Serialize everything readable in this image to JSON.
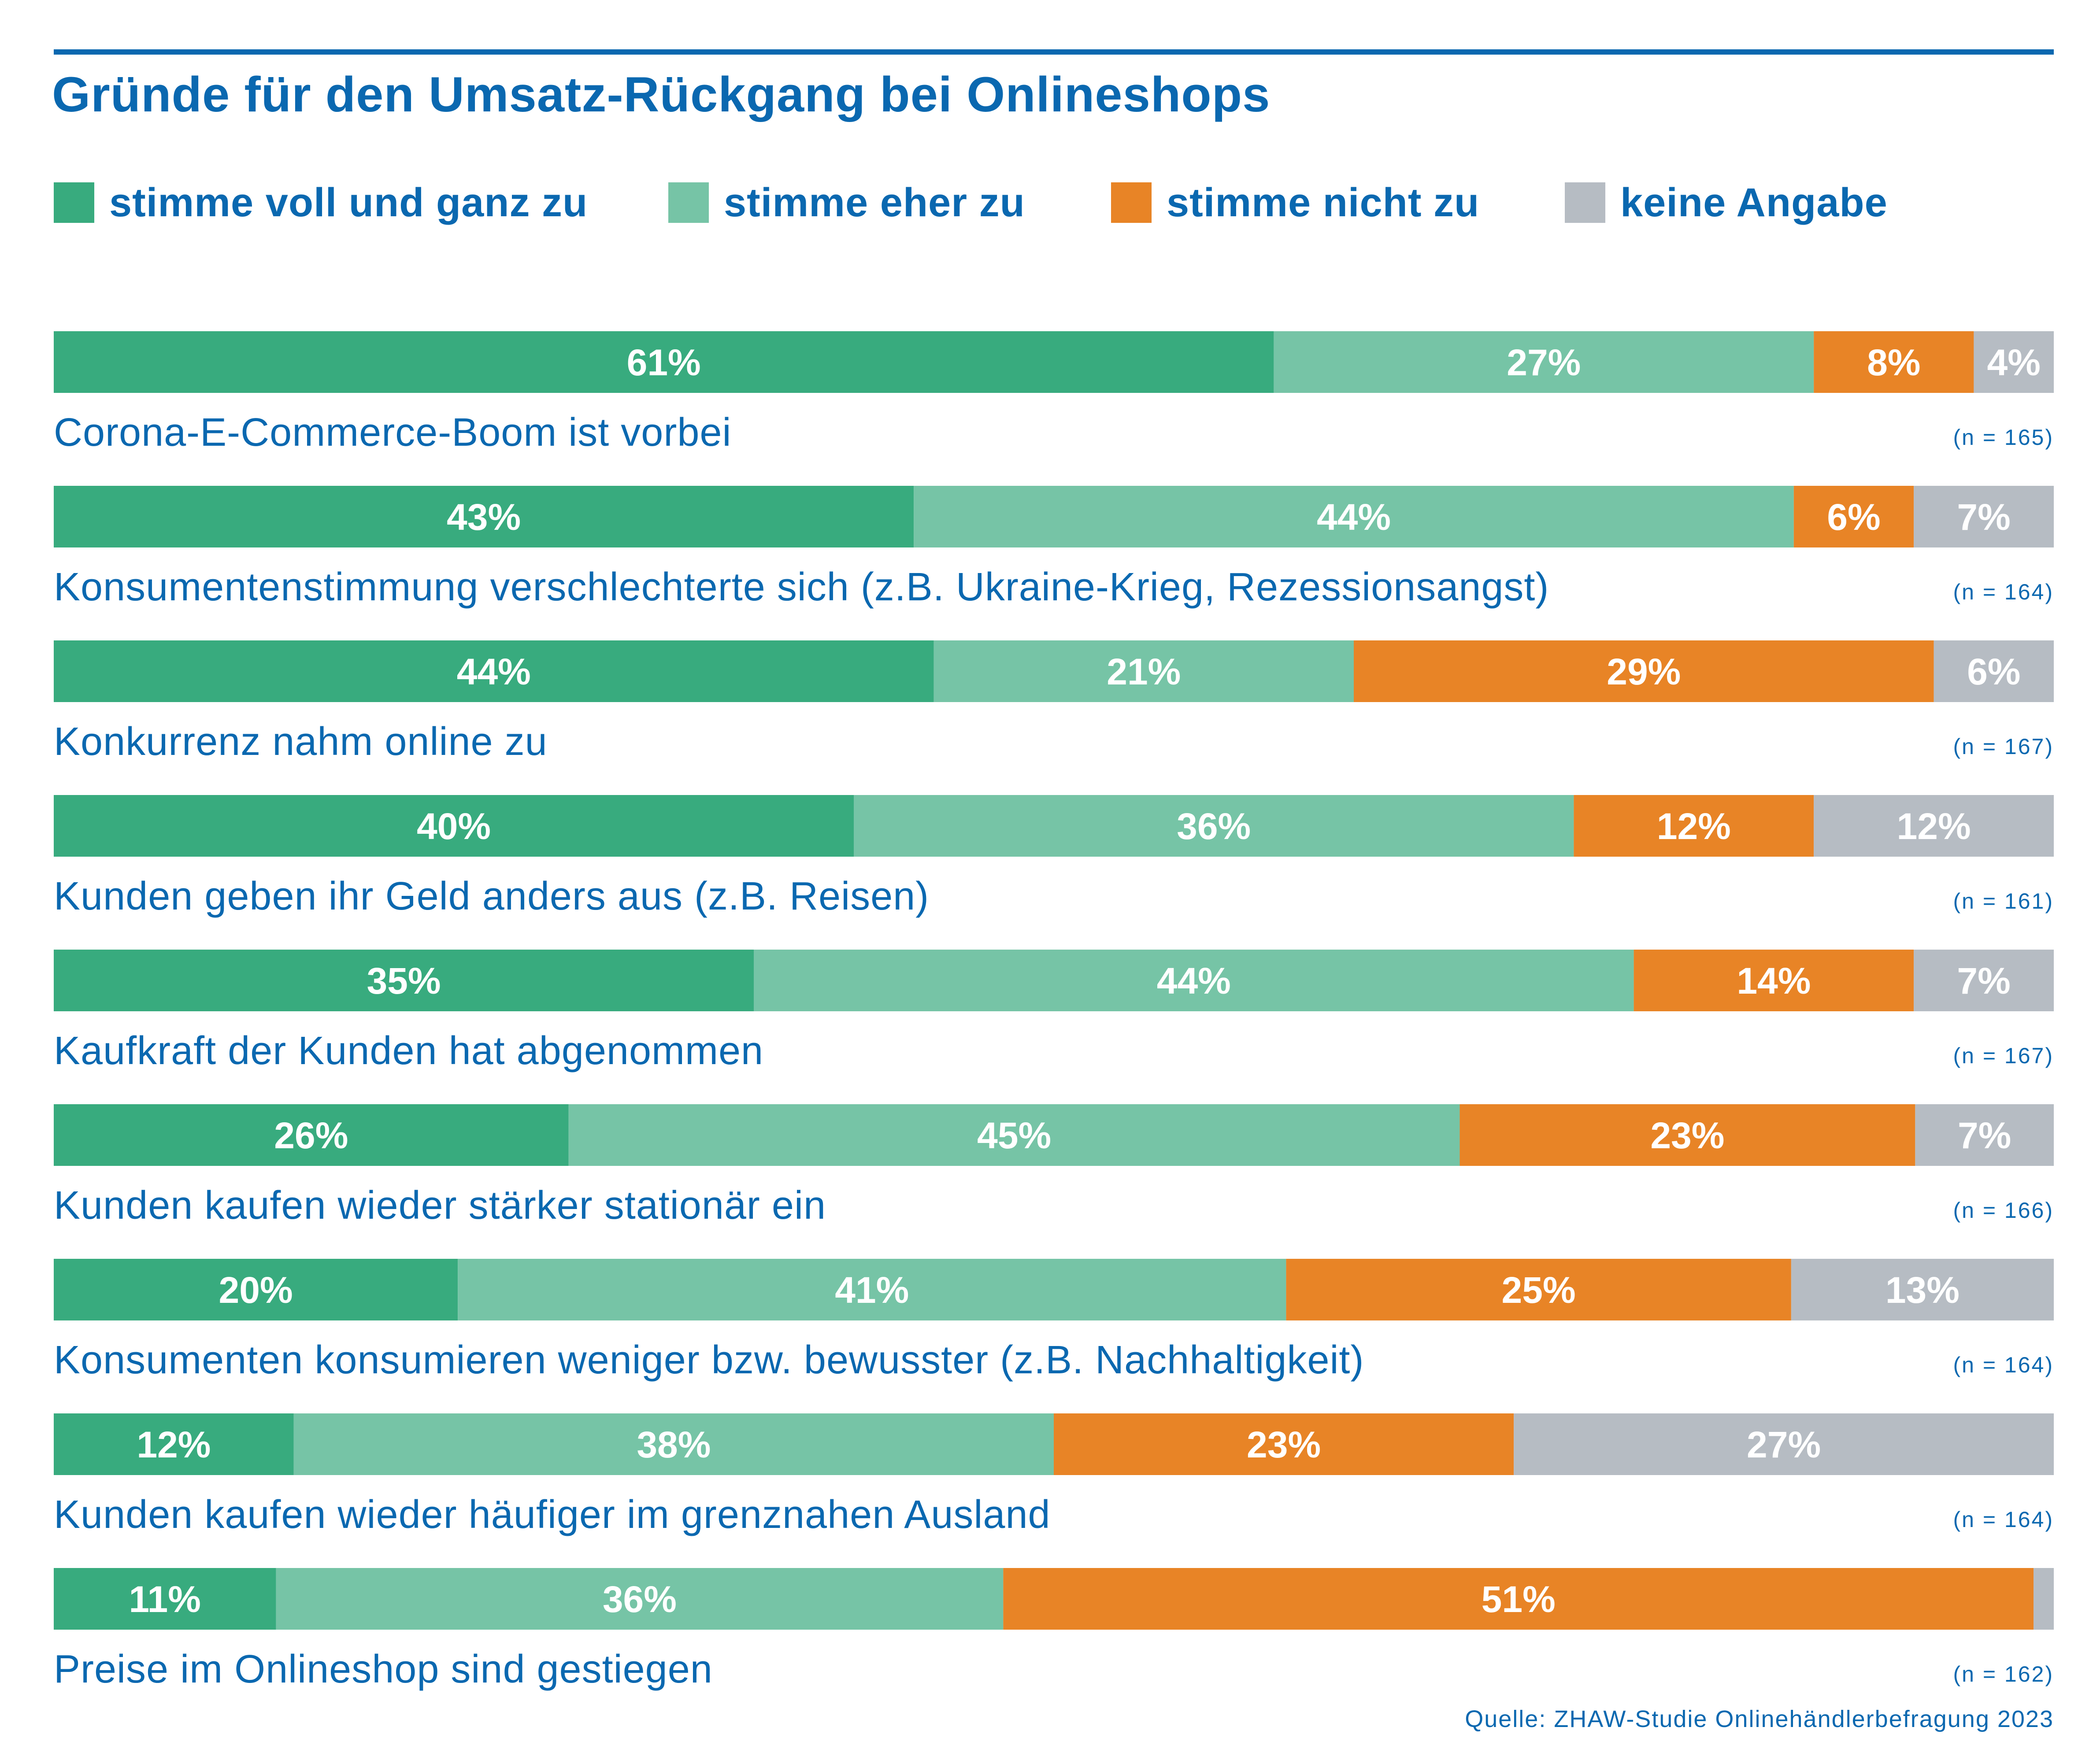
{
  "title": "Gründe für den Umsatz-Rückgang bei Onlineshops",
  "source": "Quelle: ZHAW-Studie Onlinehändlerbefragung 2023",
  "colors": {
    "title": "#0a68b0",
    "stimme_voll": "#38ab7e",
    "stimme_eher": "#76c4a6",
    "stimme_nicht": "#e88426",
    "keine_angabe": "#b6bcc3"
  },
  "legend": [
    {
      "label": "stimme voll und ganz zu",
      "color": "#38ab7e"
    },
    {
      "label": "stimme eher zu",
      "color": "#76c4a6"
    },
    {
      "label": "stimme nicht zu",
      "color": "#e88426"
    },
    {
      "label": "keine Angabe",
      "color": "#b6bcc3"
    }
  ],
  "chart_data": {
    "type": "bar",
    "orientation": "horizontal",
    "stacked": "100%",
    "unit": "%",
    "series_names": [
      "stimme voll und ganz zu",
      "stimme eher zu",
      "stimme nicht zu",
      "keine Angabe"
    ],
    "rows": [
      {
        "label": "Corona-E-Commerce-Boom ist vorbei",
        "n": "(n = 165)",
        "values": [
          61,
          27,
          8,
          4
        ],
        "value_labels": [
          "61%",
          "27%",
          "8%",
          "4%"
        ]
      },
      {
        "label": "Konsumentenstimmung verschlechterte sich (z.B. Ukraine-Krieg, Rezessionsangst)",
        "n": "(n = 164)",
        "values": [
          43,
          44,
          6,
          7
        ],
        "value_labels": [
          "43%",
          "44%",
          "6%",
          "7%"
        ]
      },
      {
        "label": "Konkurrenz nahm online zu",
        "n": "(n = 167)",
        "values": [
          44,
          21,
          29,
          6
        ],
        "value_labels": [
          "44%",
          "21%",
          "29%",
          "6%"
        ]
      },
      {
        "label": "Kunden geben ihr Geld anders aus (z.B. Reisen)",
        "n": "(n = 161)",
        "values": [
          40,
          36,
          12,
          12
        ],
        "value_labels": [
          "40%",
          "36%",
          "12%",
          "12%"
        ]
      },
      {
        "label": "Kaufkraft der Kunden hat abgenommen",
        "n": "(n = 167)",
        "values": [
          35,
          44,
          14,
          7
        ],
        "value_labels": [
          "35%",
          "44%",
          "14%",
          "7%"
        ]
      },
      {
        "label": "Kunden kaufen wieder stärker stationär ein",
        "n": "(n = 166)",
        "values": [
          26,
          45,
          23,
          7
        ],
        "value_labels": [
          "26%",
          "45%",
          "23%",
          "7%"
        ]
      },
      {
        "label": "Konsumenten konsumieren weniger bzw. bewusster (z.B. Nachhaltigkeit)",
        "n": "(n = 164)",
        "values": [
          20,
          41,
          25,
          13
        ],
        "value_labels": [
          "20%",
          "41%",
          "25%",
          "13%"
        ]
      },
      {
        "label": "Kunden kaufen wieder häufiger im grenznahen Ausland",
        "n": "(n = 164)",
        "values": [
          12,
          38,
          23,
          27
        ],
        "value_labels": [
          "12%",
          "38%",
          "23%",
          "27%"
        ]
      },
      {
        "label": "Preise im Onlineshop sind gestiegen",
        "n": "(n = 162)",
        "values": [
          11,
          36,
          51,
          1
        ],
        "value_labels": [
          "11%",
          "36%",
          "51%",
          ""
        ]
      }
    ]
  }
}
